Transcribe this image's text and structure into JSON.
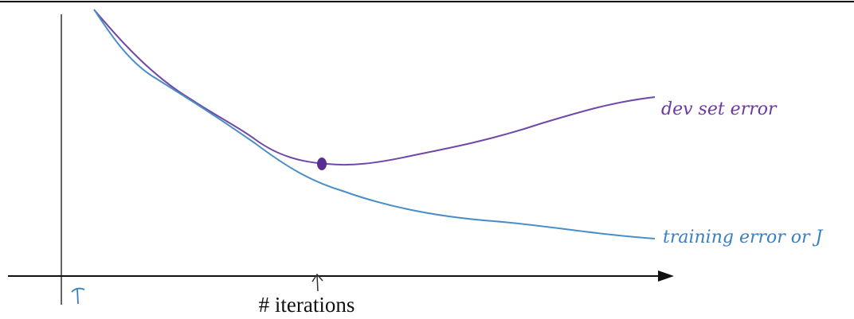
{
  "x_axis_label": "# iterations",
  "annotations": {
    "dev": "dev set error",
    "train": "training error or J"
  }
}
